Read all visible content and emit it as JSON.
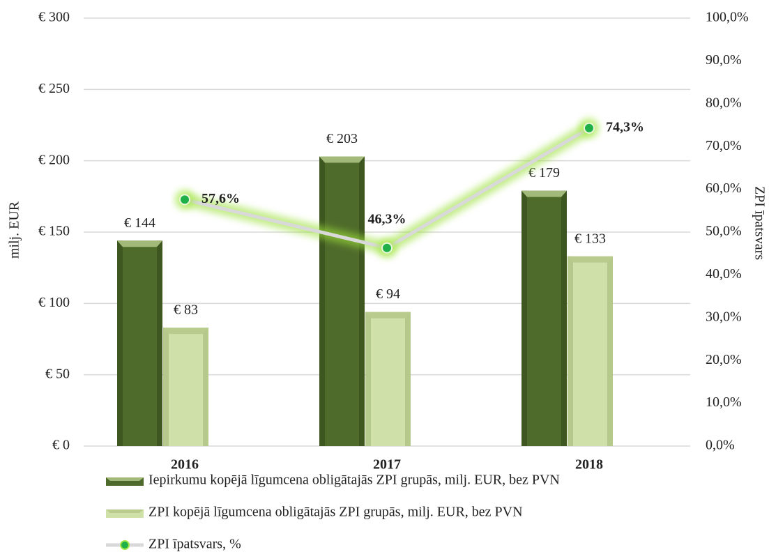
{
  "chart_data": {
    "type": "bar",
    "categories": [
      "2016",
      "2017",
      "2018"
    ],
    "ylabel": "milj. EUR",
    "y2label": "ZPI īpatsvars",
    "ylim": [
      0,
      300
    ],
    "yticks": [
      {
        "value": 0,
        "label": "€ 0"
      },
      {
        "value": 50,
        "label": "€ 50"
      },
      {
        "value": 100,
        "label": "€ 100"
      },
      {
        "value": 150,
        "label": "€ 150"
      },
      {
        "value": 200,
        "label": "€ 200"
      },
      {
        "value": 250,
        "label": "€ 250"
      },
      {
        "value": 300,
        "label": "€ 300"
      }
    ],
    "y2lim": [
      0,
      100
    ],
    "y2ticks": [
      {
        "value": 0,
        "label": "0,0%"
      },
      {
        "value": 10,
        "label": "10,0%"
      },
      {
        "value": 20,
        "label": "20,0%"
      },
      {
        "value": 30,
        "label": "30,0%"
      },
      {
        "value": 40,
        "label": "40,0%"
      },
      {
        "value": 50,
        "label": "50,0%"
      },
      {
        "value": 60,
        "label": "60,0%"
      },
      {
        "value": 70,
        "label": "70,0%"
      },
      {
        "value": 80,
        "label": "80,0%"
      },
      {
        "value": 90,
        "label": "90,0%"
      },
      {
        "value": 100,
        "label": "100,0%"
      }
    ],
    "grid": true,
    "legend": "bottom",
    "series": [
      {
        "name": "Iepirkumu kopējā līgumcena obligātajās ZPI grupās, milj. EUR, bez PVN",
        "type": "bar",
        "color": "#4f6b2b",
        "values": [
          144,
          203,
          179
        ],
        "value_labels": [
          "€ 144",
          "€ 203",
          "€ 179"
        ]
      },
      {
        "name": "ZPI kopējā līgumcena obligātajās ZPI grupās, milj. EUR, bez PVN",
        "type": "bar",
        "color": "#cfe0a8",
        "values": [
          83,
          94,
          133
        ],
        "value_labels": [
          "€ 83",
          "€ 94",
          "€ 133"
        ]
      },
      {
        "name": "ZPI īpatsvars, %",
        "type": "line",
        "axis": "y2",
        "color": "#d9d9d9",
        "values": [
          57.6,
          46.3,
          74.3
        ],
        "value_labels": [
          "57,6%",
          "46,3%",
          "74,3%"
        ]
      }
    ]
  }
}
